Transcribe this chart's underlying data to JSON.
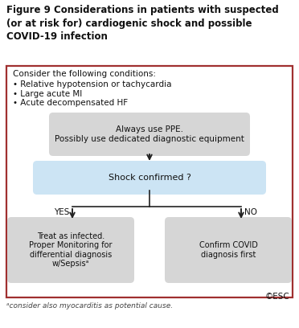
{
  "title_line1": "Figure 9 Considerations in patients with suspected",
  "title_line2": "(or at risk for) cardiogenic shock and possible",
  "title_line3": "COVID-19 infection",
  "consider_title": "Consider the following conditions:",
  "bullet1": "• Relative hypotension or tachycardia",
  "bullet2": "• Large acute MI",
  "bullet3": "• Acute decompensated HF",
  "box1_text": "Always use PPE.\nPossibly use dedicated diagnostic equipment",
  "box2_text": "Shock confirmed ?",
  "box3_text": "Treat as infected.\nProper Monitoring for\ndifferential diagnosis\nw/Sepsisᵃ",
  "box4_text": "Confirm COVID\ndiagnosis first",
  "yes_label": "YES",
  "no_label": "NO",
  "footnote": "ᵃconsider also myocarditis as potential cause.",
  "copyright": "©ESC",
  "outer_border_color": "#a03030",
  "box1_fill": "#d6d6d6",
  "box2_fill": "#cce4f4",
  "box3_fill": "#d6d6d6",
  "box4_fill": "#d6d6d6",
  "arrow_color": "#222222",
  "bg_color": "#ffffff",
  "title_fontsize": 8.5,
  "body_fontsize": 7.5,
  "small_fontsize": 6.5
}
